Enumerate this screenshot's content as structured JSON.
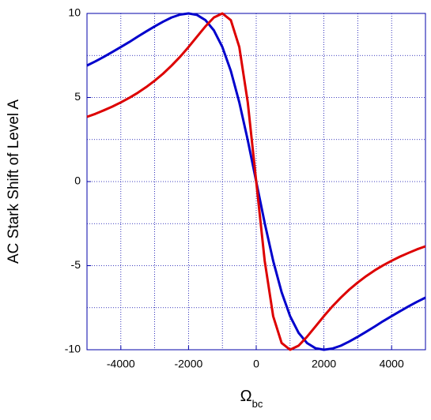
{
  "chart_data": {
    "type": "line",
    "y_label": "AC Stark Shift of Level A",
    "x_label": "Ω",
    "x_label_subscript": "bc",
    "x": [
      -5000,
      -4750,
      -4500,
      -4250,
      -4000,
      -3750,
      -3500,
      -3250,
      -3000,
      -2750,
      -2500,
      -2250,
      -2000,
      -1750,
      -1500,
      -1250,
      -1000,
      -750,
      -500,
      -250,
      0,
      250,
      500,
      750,
      1000,
      1250,
      1500,
      1750,
      2000,
      2250,
      2500,
      2750,
      3000,
      3250,
      3500,
      3750,
      4000,
      4250,
      4500,
      4750,
      5000
    ],
    "series": [
      {
        "color": "#0000cc",
        "values": [
          6.9,
          7.15,
          7.42,
          7.71,
          8.0,
          8.3,
          8.62,
          8.93,
          9.23,
          9.51,
          9.76,
          9.93,
          10.0,
          9.91,
          9.6,
          8.99,
          8.0,
          6.58,
          4.71,
          2.46,
          0,
          -2.46,
          -4.71,
          -6.58,
          -8.0,
          -8.99,
          -9.6,
          -9.91,
          -10.0,
          -9.93,
          -9.76,
          -9.51,
          -9.23,
          -8.93,
          -8.62,
          -8.3,
          -8.0,
          -7.71,
          -7.42,
          -7.15,
          -6.9
        ]
      },
      {
        "color": "#dd0000",
        "values": [
          3.85,
          4.03,
          4.24,
          4.46,
          4.71,
          4.98,
          5.28,
          5.62,
          6.0,
          6.42,
          6.9,
          7.42,
          8.0,
          8.62,
          9.23,
          9.76,
          10.0,
          9.6,
          8.0,
          4.71,
          0,
          -4.71,
          -8.0,
          -9.6,
          -10.0,
          -9.76,
          -9.23,
          -8.62,
          -8.0,
          -7.42,
          -6.9,
          -6.42,
          -6.0,
          -5.62,
          -5.28,
          -4.98,
          -4.71,
          -4.46,
          -4.24,
          -4.03,
          -3.85
        ]
      }
    ],
    "xlim": [
      -5000,
      5000
    ],
    "ylim": [
      -10,
      10
    ],
    "xticks": [
      -4000,
      -2000,
      0,
      2000,
      4000
    ],
    "yticks": [
      -10,
      -5,
      0,
      5,
      10
    ],
    "xgrid": [
      -4000,
      -3000,
      -2000,
      -1000,
      0,
      1000,
      2000,
      3000,
      4000
    ],
    "ygrid": [
      -7.5,
      -5,
      -2.5,
      0,
      2.5,
      5,
      7.5
    ],
    "grid": true
  }
}
